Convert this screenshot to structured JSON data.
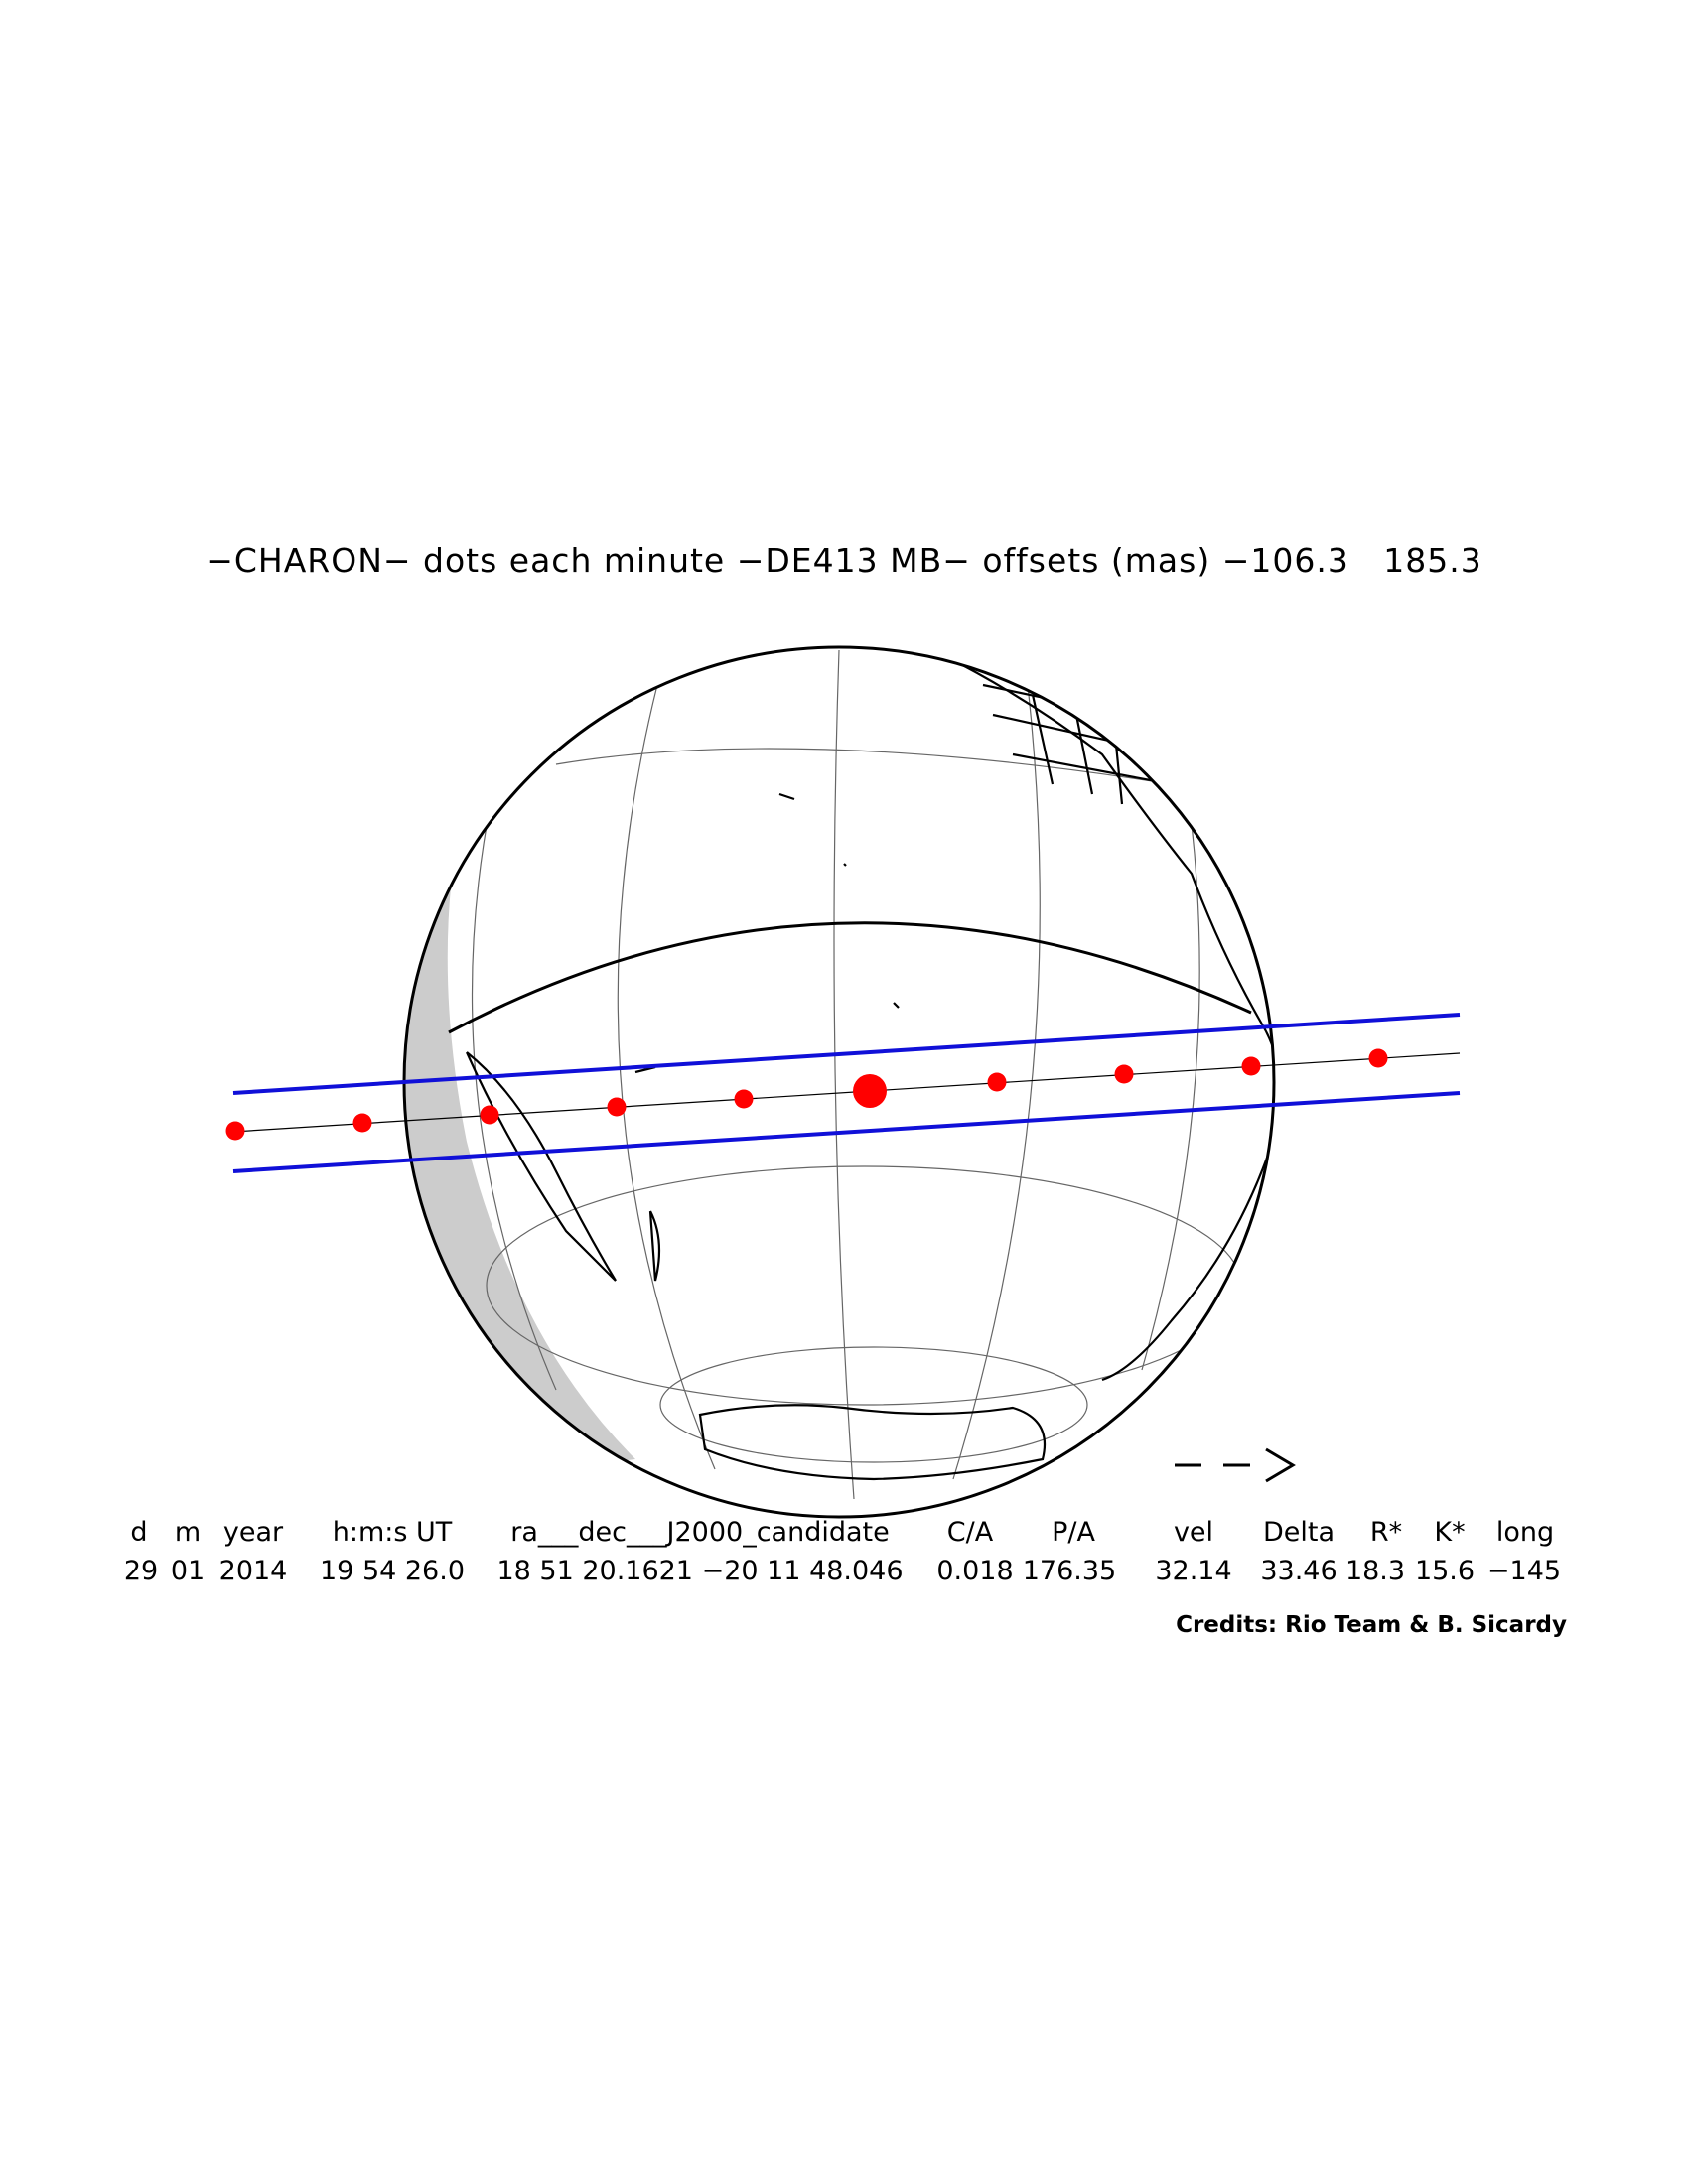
{
  "title": "−CHARON− dots each minute −DE413 MB− offsets (mas) −106.3   185.3",
  "arrow": "— — >",
  "table": {
    "headers": [
      "d",
      "m",
      "year",
      "h:m:s UT",
      "ra___dec___J2000_candidate",
      "C/A",
      "P/A",
      "vel",
      "Delta",
      "R*",
      "K*",
      "long"
    ],
    "values": [
      "29",
      "01",
      "2014",
      "19 54 26.0",
      "18 51 20.1621 −20 11 48.046",
      "0.018",
      "176.35",
      "32.14",
      "33.46",
      "18.3",
      "15.6",
      "−145"
    ]
  },
  "credits": "Credits: Rio Team & B. Sicardy",
  "colors": {
    "shadow_limits": "#1010d8",
    "dots": "#ff0000",
    "night_side": "#cccccc",
    "outline": "#000000"
  }
}
